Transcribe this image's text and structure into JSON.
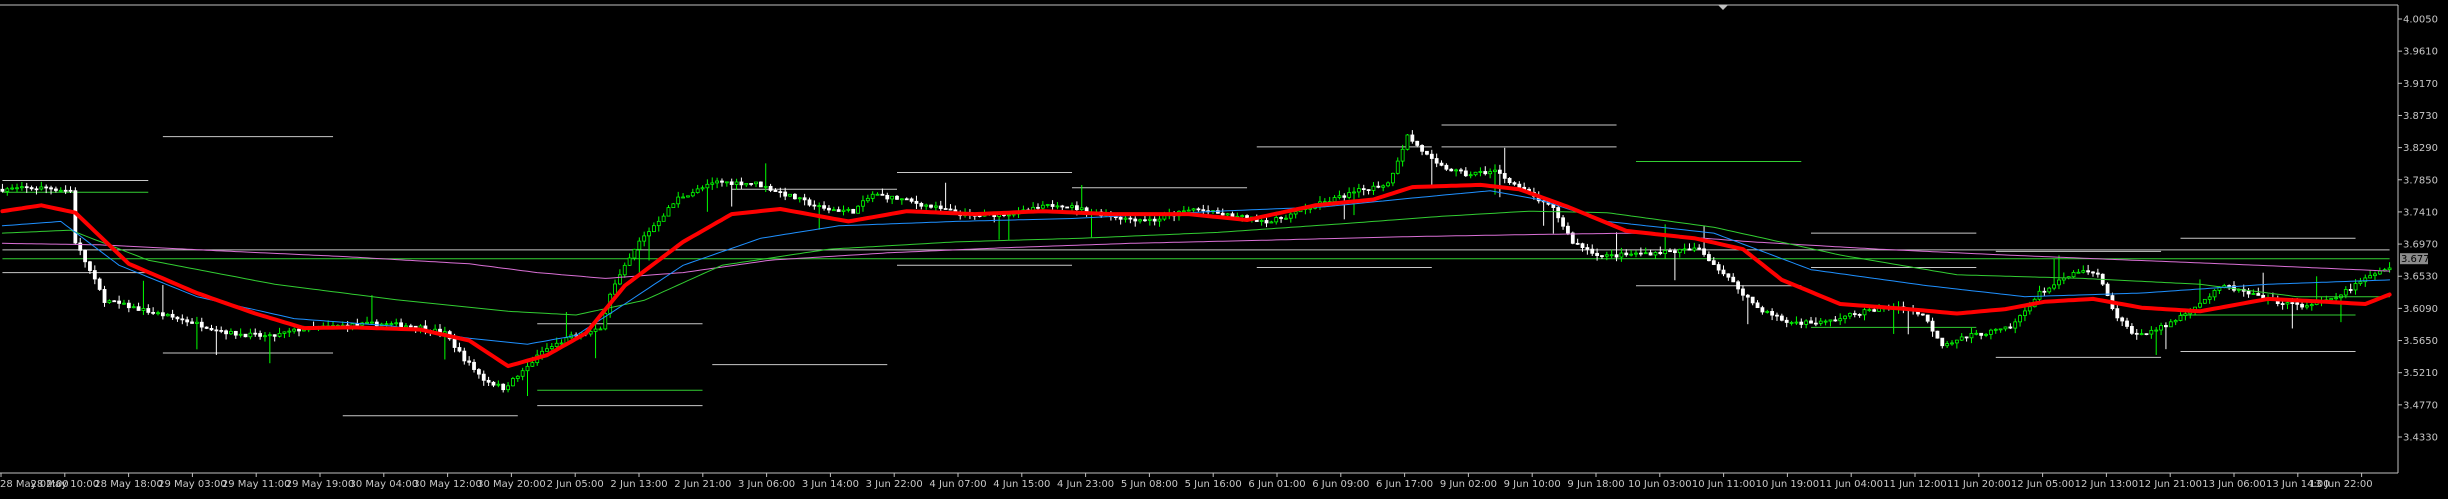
{
  "chart_data": {
    "type": "candlestick",
    "symbol": "",
    "colors": {
      "background": "#000000",
      "frame": "#c0c0c0",
      "bull_candle": "#00ff00",
      "bear_candle": "#ffffff",
      "ma_fast": "#ff0000",
      "ma_blue": "#1e90ff",
      "ma_green": "#32cd32",
      "ma_violet": "#da70d6",
      "level_white": "#c8c8c8",
      "level_green": "#32cd32",
      "current_price_badge": "#8c8c8c"
    },
    "y_axis": {
      "ticks": [
        "4.0050",
        "3.9610",
        "3.9170",
        "3.8730",
        "3.8290",
        "3.7850",
        "3.7410",
        "3.6970",
        "3.6530",
        "3.6090",
        "3.5650",
        "3.5210",
        "3.4770",
        "3.4330"
      ],
      "ylim": [
        3.405,
        4.049
      ],
      "current_price": "3.6770"
    },
    "x_axis": {
      "ticks": [
        "28 May 02:00",
        "28 May 10:00",
        "28 May 18:00",
        "29 May 03:00",
        "29 May 11:00",
        "29 May 19:00",
        "30 May 04:00",
        "30 May 12:00",
        "30 May 20:00",
        "2 Jun 05:00",
        "2 Jun 13:00",
        "2 Jun 21:00",
        "3 Jun 06:00",
        "3 Jun 14:00",
        "3 Jun 22:00",
        "4 Jun 07:00",
        "4 Jun 15:00",
        "4 Jun 23:00",
        "5 Jun 08:00",
        "5 Jun 16:00",
        "6 Jun 01:00",
        "6 Jun 09:00",
        "6 Jun 17:00",
        "9 Jun 02:00",
        "9 Jun 10:00",
        "9 Jun 18:00",
        "10 Jun 03:00",
        "10 Jun 11:00",
        "10 Jun 19:00",
        "11 Jun 04:00",
        "11 Jun 12:00",
        "11 Jun 20:00",
        "12 Jun 05:00",
        "12 Jun 13:00",
        "12 Jun 21:00",
        "13 Jun 06:00",
        "13 Jun 14:00",
        "13 Jun 22:00"
      ]
    },
    "price_path": [
      [
        0,
        3.772
      ],
      [
        10,
        3.774
      ],
      [
        15,
        3.77
      ],
      [
        16,
        3.7
      ],
      [
        22,
        3.62
      ],
      [
        28,
        3.61
      ],
      [
        40,
        3.59
      ],
      [
        48,
        3.575
      ],
      [
        56,
        3.57
      ],
      [
        62,
        3.58
      ],
      [
        70,
        3.585
      ],
      [
        78,
        3.588
      ],
      [
        86,
        3.585
      ],
      [
        92,
        3.575
      ],
      [
        96,
        3.54
      ],
      [
        100,
        3.512
      ],
      [
        104,
        3.5
      ],
      [
        108,
        3.522
      ],
      [
        112,
        3.55
      ],
      [
        118,
        3.57
      ],
      [
        124,
        3.58
      ],
      [
        126,
        3.63
      ],
      [
        132,
        3.7
      ],
      [
        140,
        3.76
      ],
      [
        148,
        3.782
      ],
      [
        156,
        3.78
      ],
      [
        162,
        3.765
      ],
      [
        170,
        3.745
      ],
      [
        176,
        3.742
      ],
      [
        180,
        3.765
      ],
      [
        186,
        3.758
      ],
      [
        194,
        3.745
      ],
      [
        200,
        3.735
      ],
      [
        210,
        3.74
      ],
      [
        218,
        3.752
      ],
      [
        226,
        3.74
      ],
      [
        232,
        3.732
      ],
      [
        238,
        3.73
      ],
      [
        246,
        3.745
      ],
      [
        254,
        3.735
      ],
      [
        262,
        3.728
      ],
      [
        272,
        3.752
      ],
      [
        280,
        3.77
      ],
      [
        286,
        3.78
      ],
      [
        290,
        3.845
      ],
      [
        296,
        3.805
      ],
      [
        302,
        3.792
      ],
      [
        308,
        3.797
      ],
      [
        314,
        3.77
      ],
      [
        320,
        3.745
      ],
      [
        324,
        3.7
      ],
      [
        330,
        3.68
      ],
      [
        340,
        3.685
      ],
      [
        350,
        3.69
      ],
      [
        356,
        3.65
      ],
      [
        362,
        3.61
      ],
      [
        368,
        3.59
      ],
      [
        376,
        3.59
      ],
      [
        384,
        3.605
      ],
      [
        392,
        3.612
      ],
      [
        396,
        3.6
      ],
      [
        400,
        3.56
      ],
      [
        406,
        3.572
      ],
      [
        414,
        3.582
      ],
      [
        420,
        3.63
      ],
      [
        428,
        3.66
      ],
      [
        432,
        3.655
      ],
      [
        436,
        3.595
      ],
      [
        440,
        3.572
      ],
      [
        446,
        3.585
      ],
      [
        452,
        3.612
      ],
      [
        458,
        3.64
      ],
      [
        466,
        3.622
      ],
      [
        474,
        3.612
      ],
      [
        480,
        3.62
      ],
      [
        486,
        3.645
      ],
      [
        491,
        3.665
      ]
    ],
    "moving_averages": [
      {
        "color_key": "ma_fast",
        "width": 4,
        "points": [
          [
            0,
            3.742
          ],
          [
            8,
            3.75
          ],
          [
            15,
            3.74
          ],
          [
            26,
            3.67
          ],
          [
            40,
            3.63
          ],
          [
            52,
            3.602
          ],
          [
            62,
            3.582
          ],
          [
            72,
            3.583
          ],
          [
            86,
            3.58
          ],
          [
            96,
            3.565
          ],
          [
            104,
            3.53
          ],
          [
            112,
            3.545
          ],
          [
            120,
            3.575
          ],
          [
            128,
            3.64
          ],
          [
            140,
            3.7
          ],
          [
            150,
            3.738
          ],
          [
            160,
            3.745
          ],
          [
            174,
            3.728
          ],
          [
            186,
            3.742
          ],
          [
            200,
            3.738
          ],
          [
            214,
            3.742
          ],
          [
            228,
            3.738
          ],
          [
            244,
            3.738
          ],
          [
            256,
            3.73
          ],
          [
            270,
            3.75
          ],
          [
            282,
            3.758
          ],
          [
            290,
            3.775
          ],
          [
            304,
            3.778
          ],
          [
            312,
            3.772
          ],
          [
            322,
            3.748
          ],
          [
            334,
            3.715
          ],
          [
            348,
            3.705
          ],
          [
            358,
            3.69
          ],
          [
            366,
            3.648
          ],
          [
            378,
            3.615
          ],
          [
            392,
            3.608
          ],
          [
            402,
            3.602
          ],
          [
            412,
            3.608
          ],
          [
            420,
            3.618
          ],
          [
            430,
            3.622
          ],
          [
            440,
            3.61
          ],
          [
            452,
            3.605
          ],
          [
            466,
            3.622
          ],
          [
            478,
            3.618
          ],
          [
            486,
            3.615
          ],
          [
            491,
            3.628
          ]
        ]
      },
      {
        "color_key": "ma_blue",
        "width": 1,
        "points": [
          [
            0,
            3.722
          ],
          [
            12,
            3.728
          ],
          [
            24,
            3.668
          ],
          [
            40,
            3.625
          ],
          [
            60,
            3.595
          ],
          [
            80,
            3.585
          ],
          [
            96,
            3.568
          ],
          [
            108,
            3.56
          ],
          [
            118,
            3.572
          ],
          [
            128,
            3.615
          ],
          [
            140,
            3.668
          ],
          [
            156,
            3.705
          ],
          [
            172,
            3.722
          ],
          [
            196,
            3.728
          ],
          [
            220,
            3.732
          ],
          [
            250,
            3.742
          ],
          [
            272,
            3.748
          ],
          [
            290,
            3.76
          ],
          [
            306,
            3.77
          ],
          [
            316,
            3.758
          ],
          [
            330,
            3.728
          ],
          [
            352,
            3.712
          ],
          [
            372,
            3.662
          ],
          [
            396,
            3.64
          ],
          [
            416,
            3.625
          ],
          [
            440,
            3.63
          ],
          [
            466,
            3.642
          ],
          [
            491,
            3.648
          ]
        ]
      },
      {
        "color_key": "ma_green",
        "width": 1,
        "points": [
          [
            0,
            3.712
          ],
          [
            14,
            3.716
          ],
          [
            30,
            3.675
          ],
          [
            56,
            3.642
          ],
          [
            82,
            3.62
          ],
          [
            104,
            3.605
          ],
          [
            118,
            3.6
          ],
          [
            132,
            3.62
          ],
          [
            148,
            3.668
          ],
          [
            170,
            3.69
          ],
          [
            196,
            3.7
          ],
          [
            222,
            3.705
          ],
          [
            250,
            3.713
          ],
          [
            276,
            3.725
          ],
          [
            296,
            3.735
          ],
          [
            314,
            3.742
          ],
          [
            330,
            3.74
          ],
          [
            352,
            3.72
          ],
          [
            378,
            3.682
          ],
          [
            402,
            3.655
          ],
          [
            428,
            3.65
          ],
          [
            452,
            3.642
          ],
          [
            472,
            3.625
          ],
          [
            491,
            3.625
          ]
        ]
      },
      {
        "color_key": "ma_violet",
        "width": 1,
        "points": [
          [
            0,
            3.698
          ],
          [
            20,
            3.696
          ],
          [
            44,
            3.688
          ],
          [
            70,
            3.68
          ],
          [
            96,
            3.67
          ],
          [
            110,
            3.658
          ],
          [
            124,
            3.65
          ],
          [
            140,
            3.658
          ],
          [
            158,
            3.675
          ],
          [
            182,
            3.685
          ],
          [
            206,
            3.692
          ],
          [
            232,
            3.698
          ],
          [
            258,
            3.702
          ],
          [
            288,
            3.707
          ],
          [
            314,
            3.71
          ],
          [
            336,
            3.712
          ],
          [
            360,
            3.7
          ],
          [
            386,
            3.69
          ],
          [
            412,
            3.682
          ],
          [
            438,
            3.675
          ],
          [
            464,
            3.668
          ],
          [
            491,
            3.66
          ]
        ]
      }
    ],
    "levels": [
      {
        "color_key": "level_white",
        "price": 3.844,
        "x0": 33,
        "x1": 68
      },
      {
        "color_key": "level_white",
        "price": 3.784,
        "x0": 0,
        "x1": 30
      },
      {
        "color_key": "level_green",
        "price": 3.768,
        "x0": 0,
        "x1": 30
      },
      {
        "color_key": "level_white",
        "price": 3.658,
        "x0": 0,
        "x1": 30
      },
      {
        "color_key": "level_white",
        "price": 3.548,
        "x0": 33,
        "x1": 68
      },
      {
        "color_key": "level_white",
        "price": 3.588,
        "x0": 110,
        "x1": 144
      },
      {
        "color_key": "level_white",
        "price": 3.476,
        "x0": 110,
        "x1": 144
      },
      {
        "color_key": "level_white",
        "price": 3.462,
        "x0": 70,
        "x1": 106
      },
      {
        "color_key": "level_green",
        "price": 3.497,
        "x0": 110,
        "x1": 144
      },
      {
        "color_key": "level_white",
        "price": 3.532,
        "x0": 146,
        "x1": 182
      },
      {
        "color_key": "level_white",
        "price": 3.795,
        "x0": 184,
        "x1": 220
      },
      {
        "color_key": "level_white",
        "price": 3.772,
        "x0": 150,
        "x1": 184
      },
      {
        "color_key": "level_white",
        "price": 3.774,
        "x0": 220,
        "x1": 256
      },
      {
        "color_key": "level_white",
        "price": 3.668,
        "x0": 184,
        "x1": 220
      },
      {
        "color_key": "level_white",
        "price": 3.83,
        "x0": 258,
        "x1": 294
      },
      {
        "color_key": "level_white",
        "price": 3.665,
        "x0": 258,
        "x1": 294
      },
      {
        "color_key": "level_white",
        "price": 3.86,
        "x0": 296,
        "x1": 332
      },
      {
        "color_key": "level_white",
        "price": 3.83,
        "x0": 296,
        "x1": 332
      },
      {
        "color_key": "level_green",
        "price": 3.81,
        "x0": 336,
        "x1": 370
      },
      {
        "color_key": "level_white",
        "price": 3.64,
        "x0": 336,
        "x1": 370
      },
      {
        "color_key": "level_white",
        "price": 3.712,
        "x0": 372,
        "x1": 406
      },
      {
        "color_key": "level_white",
        "price": 3.665,
        "x0": 372,
        "x1": 406
      },
      {
        "color_key": "level_white",
        "price": 3.687,
        "x0": 410,
        "x1": 444
      },
      {
        "color_key": "level_green",
        "price": 3.583,
        "x0": 372,
        "x1": 406
      },
      {
        "color_key": "level_white",
        "price": 3.542,
        "x0": 410,
        "x1": 444
      },
      {
        "color_key": "level_white",
        "price": 3.705,
        "x0": 448,
        "x1": 484
      },
      {
        "color_key": "level_white",
        "price": 3.55,
        "x0": 448,
        "x1": 484
      },
      {
        "color_key": "level_green",
        "price": 3.6,
        "x0": 448,
        "x1": 484
      },
      {
        "color_key": "level_white",
        "price": 3.689,
        "x0": 0,
        "x1": 491
      },
      {
        "color_key": "level_green",
        "price": 3.677,
        "x0": 0,
        "x1": 491
      }
    ]
  }
}
